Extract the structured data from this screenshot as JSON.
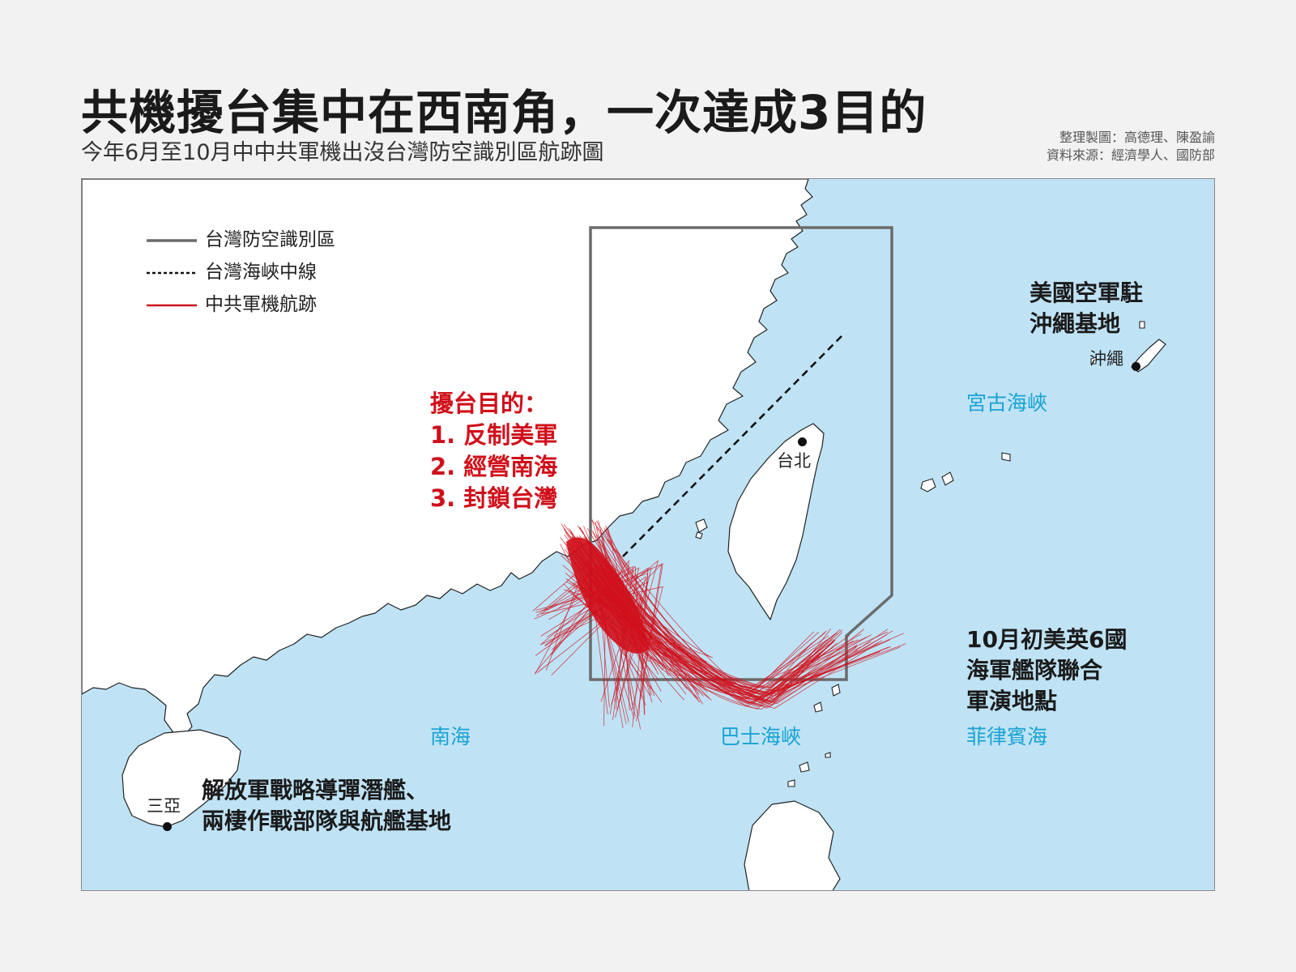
{
  "title": "共機擾台集中在西南角，一次達成3目的",
  "subtitle": "今年6月至10月中中共軍機出沒台灣防空識別區航跡圖",
  "credits": {
    "makers": "整理製圖：高德理、陳盈諭",
    "source": "資料來源：經濟學人、國防部"
  },
  "legend": {
    "adiz": "台灣防空識別區",
    "median_line": "台灣海峽中線",
    "tracks": "中共軍機航跡"
  },
  "colors": {
    "sea": "#bfe3f5",
    "land": "#ffffff",
    "adiz": "#6b6b6b",
    "tracks": "#d0101b",
    "sea_label": "#1aa3d4",
    "purpose": "#d0101b"
  },
  "purpose": {
    "heading": "擾台目的：",
    "items": [
      "1. 反制美軍",
      "2. 經營南海",
      "3. 封鎖台灣"
    ]
  },
  "seas": {
    "south_china_sea": "南海",
    "bashi_channel": "巴士海峽",
    "philippine_sea": "菲律賓海",
    "miyako_strait": "宮古海峽"
  },
  "places": {
    "taipei": "台北",
    "okinawa": "沖繩",
    "sanya": "三亞"
  },
  "notes": {
    "okinawa": [
      "美國空軍駐",
      "沖繩基地"
    ],
    "exercise": [
      "10月初美英6國",
      "海軍艦隊聯合",
      "軍演地點"
    ],
    "hainan": [
      "解放軍戰略導彈潛艦、",
      "兩棲作戰部隊與航艦基地"
    ]
  }
}
